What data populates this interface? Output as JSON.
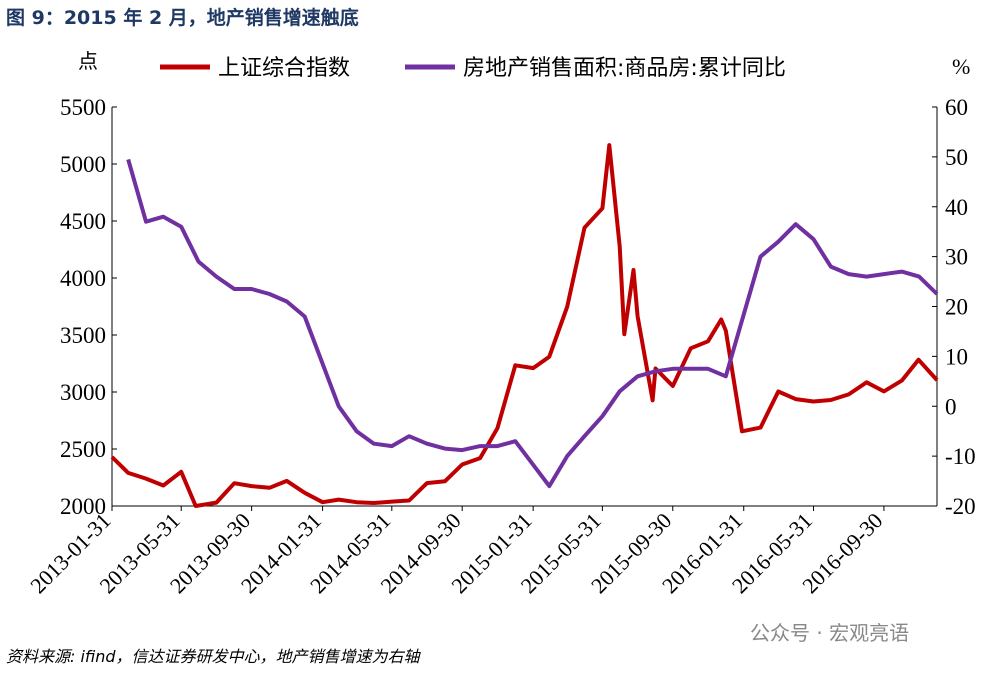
{
  "chart_data": {
    "type": "line",
    "title": "图 9：2015 年 2 月，地产销售增速触底",
    "y_label": "点",
    "y2_label": "%",
    "source": "资料来源: ifind，信达证券研发中心，地产销售增速为右轴",
    "watermark": "公众号 · 宏观亮语",
    "xlim": [
      "2013-01-31",
      "2016-12-31"
    ],
    "xticks": [
      "2013-01-31",
      "2013-05-31",
      "2013-09-30",
      "2014-01-31",
      "2014-05-31",
      "2014-09-30",
      "2015-01-31",
      "2015-05-31",
      "2015-09-30",
      "2016-01-31",
      "2016-05-31",
      "2016-09-30"
    ],
    "ylim": [
      2000,
      5500
    ],
    "yticks": [
      2000,
      2500,
      3000,
      3500,
      4000,
      4500,
      5000,
      5500
    ],
    "y2lim": [
      -20,
      60
    ],
    "y2ticks": [
      -20,
      -10,
      0,
      10,
      20,
      30,
      40,
      50,
      60
    ],
    "grid": false,
    "series": [
      {
        "name": "上证综合指数",
        "color": "#c00000",
        "x": [
          "2013-01-31",
          "2013-02-28",
          "2013-03-31",
          "2013-04-30",
          "2013-05-31",
          "2013-06-25",
          "2013-07-31",
          "2013-08-31",
          "2013-09-30",
          "2013-10-31",
          "2013-11-30",
          "2013-12-31",
          "2014-01-31",
          "2014-02-28",
          "2014-03-31",
          "2014-04-30",
          "2014-05-31",
          "2014-06-30",
          "2014-07-31",
          "2014-08-31",
          "2014-09-30",
          "2014-10-31",
          "2014-11-30",
          "2014-12-31",
          "2015-01-31",
          "2015-02-28",
          "2015-03-31",
          "2015-04-30",
          "2015-05-31",
          "2015-06-12",
          "2015-06-30",
          "2015-07-08",
          "2015-07-24",
          "2015-07-31",
          "2015-08-26",
          "2015-08-31",
          "2015-09-30",
          "2015-10-31",
          "2015-11-30",
          "2015-12-23",
          "2015-12-31",
          "2016-01-28",
          "2016-02-29",
          "2016-03-31",
          "2016-04-30",
          "2016-05-31",
          "2016-06-30",
          "2016-07-31",
          "2016-08-31",
          "2016-09-30",
          "2016-10-31",
          "2016-11-29",
          "2016-12-31"
        ],
        "values": [
          2430,
          2290,
          2240,
          2180,
          2300,
          2000,
          2030,
          2200,
          2175,
          2160,
          2220,
          2116,
          2033,
          2056,
          2033,
          2026,
          2039,
          2048,
          2201,
          2217,
          2364,
          2420,
          2682,
          3234,
          3210,
          3310,
          3748,
          4441,
          4611,
          5166,
          4277,
          3507,
          4070,
          3664,
          2927,
          3206,
          3053,
          3383,
          3445,
          3636,
          3539,
          2655,
          2688,
          3004,
          2938,
          2917,
          2930,
          2979,
          3085,
          3005,
          3100,
          3283,
          3104
        ]
      },
      {
        "name": "房地产销售面积:商品房:累计同比",
        "color": "#7030a0",
        "axis": "y2",
        "x": [
          "2013-02-28",
          "2013-03-31",
          "2013-04-30",
          "2013-05-31",
          "2013-06-30",
          "2013-07-31",
          "2013-08-31",
          "2013-09-30",
          "2013-10-31",
          "2013-11-30",
          "2013-12-31",
          "2014-02-28",
          "2014-03-31",
          "2014-04-30",
          "2014-05-31",
          "2014-06-30",
          "2014-07-31",
          "2014-08-31",
          "2014-09-30",
          "2014-10-31",
          "2014-11-30",
          "2014-12-31",
          "2015-02-28",
          "2015-03-31",
          "2015-04-30",
          "2015-05-31",
          "2015-06-30",
          "2015-07-31",
          "2015-08-31",
          "2015-09-30",
          "2015-10-31",
          "2015-11-30",
          "2015-12-31",
          "2016-02-29",
          "2016-03-31",
          "2016-04-30",
          "2016-05-31",
          "2016-06-30",
          "2016-07-31",
          "2016-08-31",
          "2016-09-30",
          "2016-10-31",
          "2016-11-30",
          "2016-12-31"
        ],
        "values": [
          49.5,
          37,
          38,
          36,
          29,
          26,
          23.5,
          23.5,
          22.5,
          21,
          18,
          0,
          -5,
          -7.5,
          -8,
          -6,
          -7.5,
          -8.5,
          -8.8,
          -8,
          -8,
          -7,
          -16,
          -10,
          -6,
          -2,
          3,
          6,
          7,
          7.5,
          7.5,
          7.5,
          6,
          30,
          33,
          36.5,
          33.5,
          28,
          26.5,
          26,
          26.5,
          27,
          26,
          22.5
        ]
      }
    ]
  }
}
